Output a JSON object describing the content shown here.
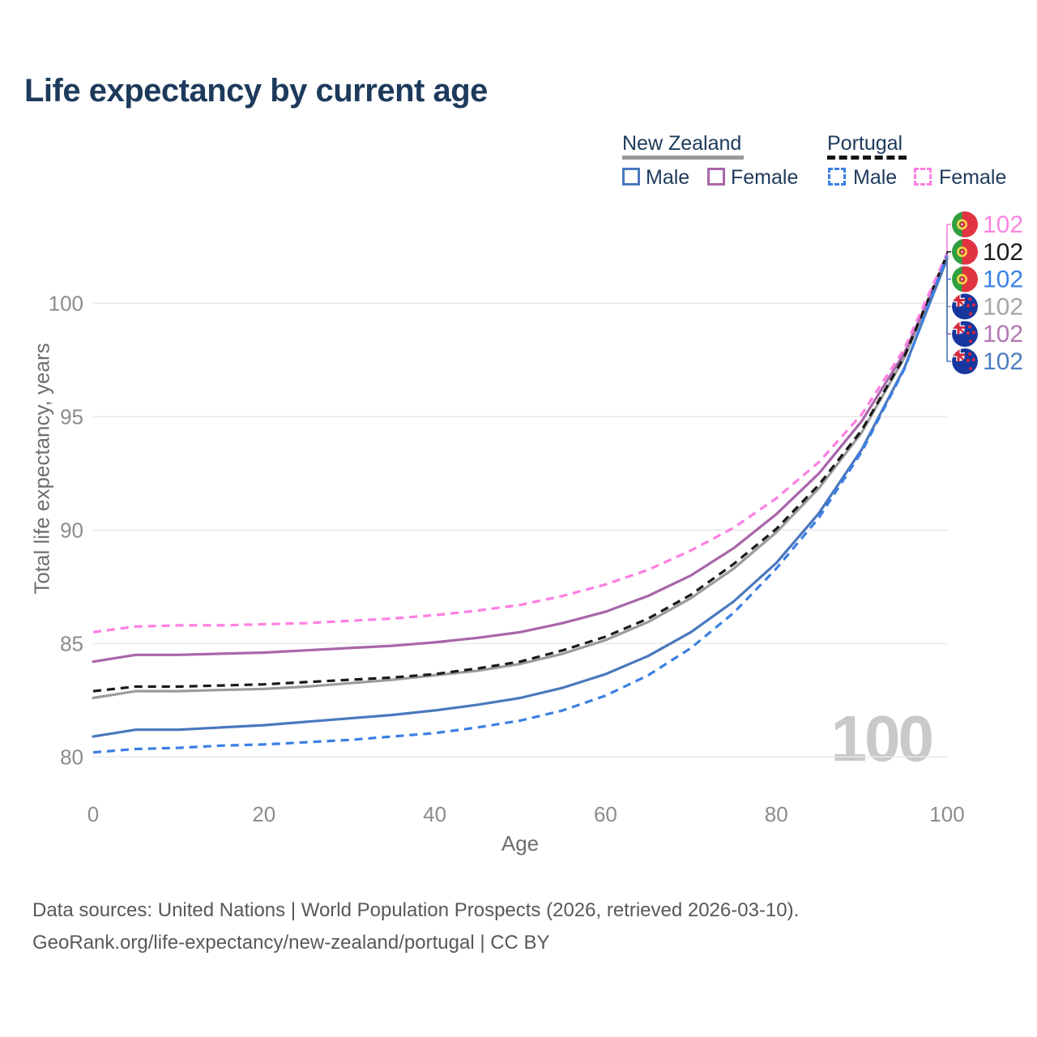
{
  "title": "Life expectancy by current age",
  "legend": {
    "new_zealand": {
      "label": "New Zealand",
      "male": "Male",
      "female": "Female"
    },
    "portugal": {
      "label": "Portugal",
      "male": "Male",
      "female": "Female"
    }
  },
  "watermark_age_counter": "100",
  "footer": {
    "line1": "Data sources: United Nations | World Population Prospects (2026, retrieved 2026-03-10).",
    "line2": "GeoRank.org/life-expectancy/new-zealand/portugal | CC BY"
  },
  "colors": {
    "title_text": "#1d3a5c",
    "gridline": "#e8e8e8",
    "tick_text": "#8c8c8c",
    "axis_title_text": "#6f6f6f",
    "footer_text": "#585858",
    "watermark": "#c9c9c9"
  },
  "chart_data": {
    "type": "line",
    "title": "Life expectancy by current age",
    "xlabel": "Age",
    "ylabel": "Total life expectancy, years",
    "x": [
      0,
      5,
      10,
      15,
      20,
      25,
      30,
      35,
      40,
      45,
      50,
      55,
      60,
      65,
      70,
      75,
      80,
      85,
      90,
      95,
      100
    ],
    "xticks": [
      0,
      20,
      40,
      60,
      80,
      100
    ],
    "yticks": [
      80,
      85,
      90,
      95,
      100
    ],
    "xlim": [
      0,
      100
    ],
    "ylim": [
      78.8,
      103.2
    ],
    "grid": "horizontal",
    "legend_position": "top-right",
    "series": [
      {
        "id": "nz-both",
        "name": "New Zealand — Both sexes",
        "country": "nz",
        "sex": "both",
        "style": "solid",
        "color": "#9b9b9b",
        "label_color": "#a6a6a6",
        "end_label": "102",
        "values": [
          82.6,
          82.9,
          82.9,
          82.95,
          83.0,
          83.1,
          83.25,
          83.4,
          83.6,
          83.8,
          84.1,
          84.55,
          85.15,
          85.95,
          87.0,
          88.3,
          89.9,
          91.85,
          94.3,
          97.6,
          102.05
        ]
      },
      {
        "id": "nz-female",
        "name": "New Zealand — Female",
        "country": "nz",
        "sex": "female",
        "style": "solid",
        "color": "#a866aa",
        "label_color": "#b277b2",
        "end_label": "102",
        "values": [
          84.2,
          84.5,
          84.5,
          84.55,
          84.6,
          84.7,
          84.8,
          84.9,
          85.05,
          85.25,
          85.5,
          85.9,
          86.4,
          87.1,
          88.0,
          89.2,
          90.7,
          92.5,
          94.8,
          97.8,
          102.0
        ]
      },
      {
        "id": "nz-male",
        "name": "New Zealand — Male",
        "country": "nz",
        "sex": "male",
        "style": "solid",
        "color": "#4a78bd",
        "label_color": "#4d7ec0",
        "end_label": "102",
        "values": [
          80.9,
          81.2,
          81.2,
          81.3,
          81.4,
          81.55,
          81.7,
          81.85,
          82.05,
          82.3,
          82.6,
          83.05,
          83.65,
          84.45,
          85.5,
          86.85,
          88.55,
          90.75,
          93.55,
          97.15,
          101.95
        ]
      },
      {
        "id": "pt-both",
        "name": "Portugal — Both sexes",
        "country": "pt",
        "sex": "both",
        "style": "dashed",
        "color": "#1a1a1a",
        "label_color": "#1a1a1a",
        "end_label": "102",
        "values": [
          82.9,
          83.1,
          83.1,
          83.15,
          83.2,
          83.3,
          83.4,
          83.5,
          83.65,
          83.9,
          84.2,
          84.7,
          85.3,
          86.1,
          87.15,
          88.5,
          90.05,
          92.0,
          94.4,
          97.65,
          102.15
        ]
      },
      {
        "id": "pt-female",
        "name": "Portugal — Female",
        "country": "pt",
        "sex": "female",
        "style": "dashed",
        "color": "#ff7ee2",
        "label_color": "#fb85e1",
        "end_label": "102",
        "values": [
          85.5,
          85.75,
          85.8,
          85.8,
          85.85,
          85.9,
          86.0,
          86.1,
          86.25,
          86.45,
          86.7,
          87.1,
          87.6,
          88.25,
          89.1,
          90.1,
          91.4,
          93.0,
          95.1,
          98.0,
          102.2
        ]
      },
      {
        "id": "pt-male",
        "name": "Portugal — Male",
        "country": "pt",
        "sex": "male",
        "style": "dashed",
        "color": "#3b7fe4",
        "label_color": "#3b82e8",
        "end_label": "102",
        "values": [
          80.2,
          80.35,
          80.4,
          80.5,
          80.55,
          80.65,
          80.75,
          80.9,
          81.05,
          81.3,
          81.6,
          82.05,
          82.7,
          83.6,
          84.8,
          86.35,
          88.3,
          90.55,
          93.45,
          97.1,
          102.1
        ]
      }
    ],
    "draw_order": [
      "nz-both",
      "nz-female",
      "nz-male",
      "pt-both",
      "pt-female",
      "pt-male"
    ],
    "right_labels_order": [
      "pt-female",
      "pt-both",
      "pt-male",
      "nz-both",
      "nz-female",
      "nz-male"
    ]
  }
}
